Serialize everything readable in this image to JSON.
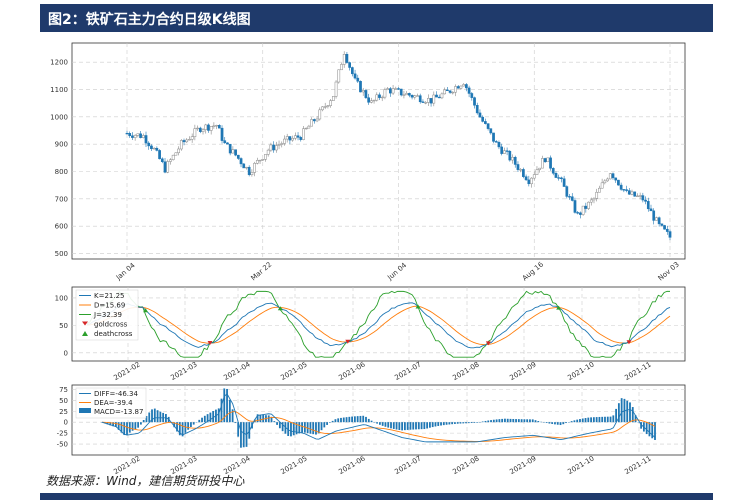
{
  "header": {
    "title": "图2：铁矿石主力合约日级K线图"
  },
  "source": {
    "text": "数据来源：Wind，建信期货研投中心"
  },
  "chart_data": [
    {
      "type": "candlestick",
      "title": "",
      "ylim": [
        480,
        1270
      ],
      "yticks": [
        500,
        600,
        700,
        800,
        900,
        1000,
        1100,
        1200
      ],
      "xticks": [
        "Jan 04",
        "Mar 22",
        "Jun 04",
        "Aug 16",
        "Nov 03"
      ],
      "grid": true,
      "close_path": [
        [
          0,
          940
        ],
        [
          6,
          930
        ],
        [
          10,
          880
        ],
        [
          14,
          810
        ],
        [
          20,
          900
        ],
        [
          27,
          960
        ],
        [
          33,
          970
        ],
        [
          36,
          900
        ],
        [
          40,
          860
        ],
        [
          45,
          800
        ],
        [
          52,
          880
        ],
        [
          58,
          910
        ],
        [
          64,
          930
        ],
        [
          70,
          1000
        ],
        [
          76,
          1080
        ],
        [
          80,
          1240
        ],
        [
          84,
          1130
        ],
        [
          90,
          1050
        ],
        [
          96,
          1100
        ],
        [
          104,
          1080
        ],
        [
          112,
          1060
        ],
        [
          118,
          1090
        ],
        [
          124,
          1130
        ],
        [
          130,
          1000
        ],
        [
          136,
          900
        ],
        [
          142,
          840
        ],
        [
          148,
          770
        ],
        [
          154,
          850
        ],
        [
          160,
          760
        ],
        [
          166,
          640
        ],
        [
          172,
          700
        ],
        [
          178,
          800
        ],
        [
          184,
          720
        ],
        [
          190,
          700
        ],
        [
          196,
          600
        ],
        [
          200,
          560
        ]
      ],
      "n_days": 201
    },
    {
      "type": "line",
      "legend": [
        "K=21.25",
        "D=15.69",
        "J=32.39",
        "goldcross",
        "deathcross"
      ],
      "ylim": [
        -15,
        120
      ],
      "yticks": [
        0,
        50,
        100
      ],
      "xticks": [
        "2021-02",
        "2021-03",
        "2021-04",
        "2021-05",
        "2021-06",
        "2021-07",
        "2021-08",
        "2021-09",
        "2021-10",
        "2021-11"
      ],
      "grid": true,
      "colors": {
        "K": "#1f77b4",
        "D": "#ff7f0e",
        "J": "#2ca02c",
        "gold": "#d62728",
        "death": "#2ca02c"
      }
    },
    {
      "type": "bar+line",
      "legend": [
        "DIFF=-46.34",
        "DEA=-39.4",
        "MACD=-13.87"
      ],
      "ylim": [
        -75,
        85
      ],
      "yticks": [
        -50,
        -25,
        0,
        25,
        50,
        75
      ],
      "xticks": [
        "2021-02",
        "2021-03",
        "2021-04",
        "2021-05",
        "2021-06",
        "2021-07",
        "2021-08",
        "2021-09",
        "2021-10",
        "2021-11"
      ],
      "grid": true,
      "colors": {
        "DIFF": "#1f77b4",
        "DEA": "#ff7f0e",
        "MACD": "#1f77b4"
      }
    }
  ]
}
